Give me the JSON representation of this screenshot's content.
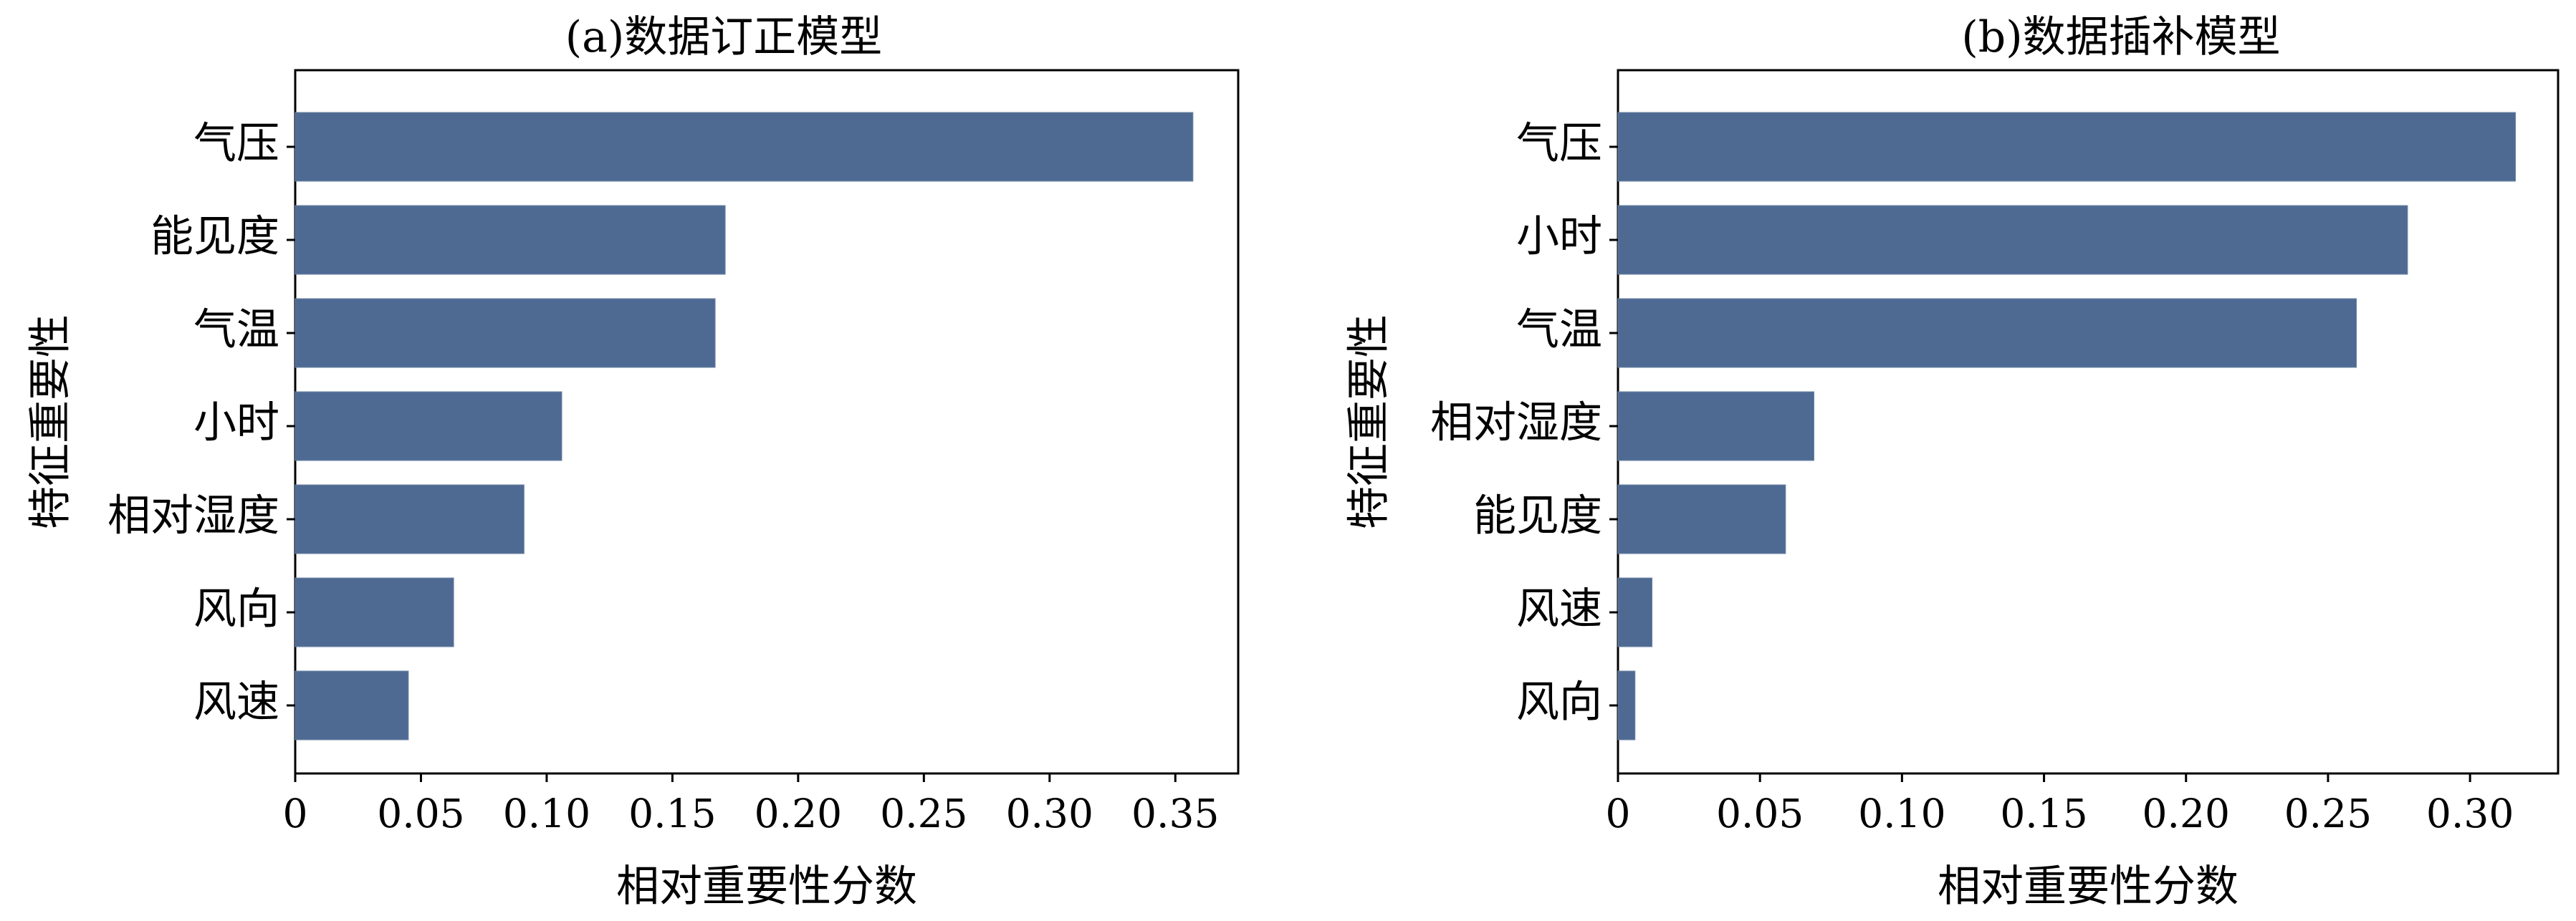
{
  "chart_data": [
    {
      "type": "bar",
      "orientation": "horizontal",
      "title": "(a)数据订正模型",
      "xlabel": "相对重要性分数",
      "ylabel": "特征重要性",
      "categories": [
        "气压",
        "能见度",
        "气温",
        "小时",
        "相对湿度",
        "风向",
        "风速"
      ],
      "values": [
        0.357,
        0.171,
        0.167,
        0.106,
        0.091,
        0.063,
        0.045
      ],
      "xlim": [
        0,
        0.375
      ],
      "xticks": [
        0,
        0.05,
        0.1,
        0.15,
        0.2,
        0.25,
        0.3,
        0.35
      ],
      "xtick_labels": [
        "0",
        "0.05",
        "0.10",
        "0.15",
        "0.20",
        "0.25",
        "0.30",
        "0.35"
      ],
      "color": "#4e6a93",
      "grid": false
    },
    {
      "type": "bar",
      "orientation": "horizontal",
      "title": "(b)数据插补模型",
      "xlabel": "相对重要性分数",
      "ylabel": "特征重要性",
      "categories": [
        "气压",
        "小时",
        "气温",
        "相对湿度",
        "能见度",
        "风速",
        "风向"
      ],
      "values": [
        0.316,
        0.278,
        0.26,
        0.069,
        0.059,
        0.012,
        0.006
      ],
      "xlim": [
        0,
        0.331
      ],
      "xticks": [
        0,
        0.05,
        0.1,
        0.15,
        0.2,
        0.25,
        0.3
      ],
      "xtick_labels": [
        "0",
        "0.05",
        "0.10",
        "0.15",
        "0.20",
        "0.25",
        "0.30"
      ],
      "color": "#4e6a93",
      "grid": false
    }
  ]
}
